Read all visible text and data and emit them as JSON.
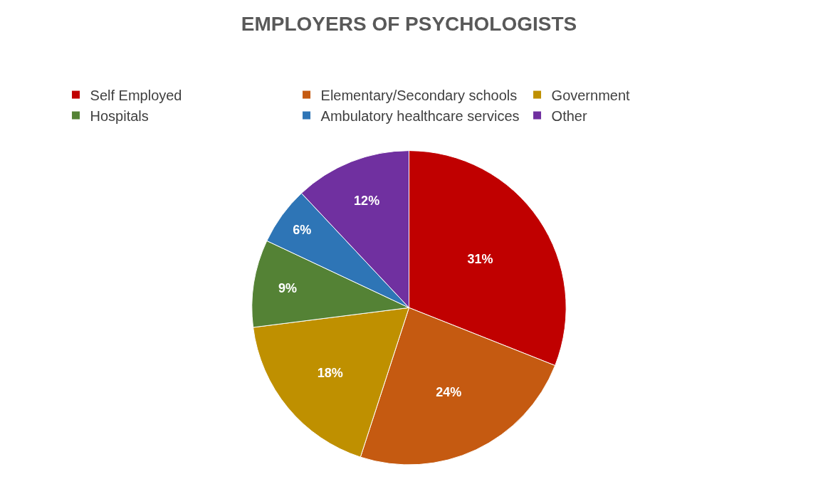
{
  "chart_data": {
    "type": "pie",
    "title": "EMPLOYERS OF PSYCHOLOGISTS",
    "categories": [
      "Self Employed",
      "Elementary/Secondary schools",
      "Government",
      "Hospitals",
      "Ambulatory healthcare services",
      "Other"
    ],
    "values": [
      31,
      24,
      18,
      9,
      6,
      12
    ],
    "value_labels": [
      "31%",
      "24%",
      "18%",
      "9%",
      "6%",
      "12%"
    ],
    "colors": [
      "#c00000",
      "#c55a11",
      "#bf9000",
      "#548235",
      "#2e75b6",
      "#7030a0"
    ],
    "legend": "top"
  }
}
